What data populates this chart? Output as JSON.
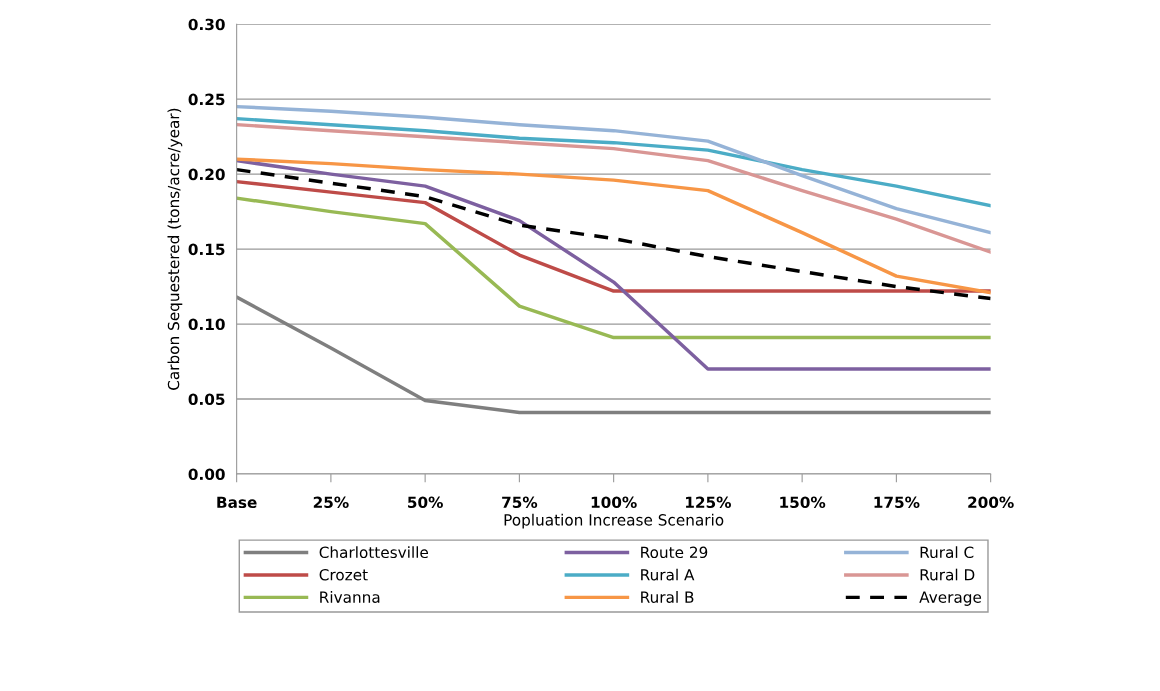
{
  "chart_data": {
    "type": "line",
    "xlabel": "Popluation Increase Scenario",
    "ylabel": "Carbon Sequestered (tons/acre/year)",
    "categories": [
      "Base",
      "25%",
      "50%",
      "75%",
      "100%",
      "125%",
      "150%",
      "175%",
      "200%"
    ],
    "ylim": [
      0,
      0.3
    ],
    "yticks": [
      {
        "value": 0,
        "label": "0.00"
      },
      {
        "value": 0.05,
        "label": "0.05"
      },
      {
        "value": 0.1,
        "label": "0.10"
      },
      {
        "value": 0.15,
        "label": "0.15"
      },
      {
        "value": 0.2,
        "label": "0.20"
      },
      {
        "value": 0.25,
        "label": "0.25"
      },
      {
        "value": 0.3,
        "label": "0.30"
      }
    ],
    "grid": "y",
    "legend": "bottom",
    "marker": "none",
    "series": [
      {
        "name": "Charlottesville",
        "color": "#7f7f7f",
        "values": [
          0.118,
          0.084,
          0.049,
          0.041,
          0.041,
          0.041,
          0.041,
          0.041,
          0.041
        ]
      },
      {
        "name": "Crozet",
        "color": "#be4b48",
        "values": [
          0.195,
          0.188,
          0.181,
          0.146,
          0.122,
          0.122,
          0.122,
          0.122,
          0.122
        ]
      },
      {
        "name": "Rivanna",
        "color": "#98b954",
        "values": [
          0.184,
          0.175,
          0.167,
          0.112,
          0.091,
          0.091,
          0.091,
          0.091,
          0.091
        ]
      },
      {
        "name": "Route 29",
        "color": "#7d60a0",
        "values": [
          0.209,
          0.2,
          0.192,
          0.169,
          0.128,
          0.07,
          0.07,
          0.07,
          0.07
        ]
      },
      {
        "name": "Rural A",
        "color": "#4bacc6",
        "values": [
          0.237,
          0.233,
          0.229,
          0.224,
          0.221,
          0.216,
          0.203,
          0.192,
          0.179
        ]
      },
      {
        "name": "Rural B",
        "color": "#f79646",
        "values": [
          0.21,
          0.207,
          0.203,
          0.2,
          0.196,
          0.189,
          0.161,
          0.132,
          0.121
        ]
      },
      {
        "name": "Rural C",
        "color": "#95b3d7",
        "values": [
          0.245,
          0.242,
          0.238,
          0.233,
          0.229,
          0.222,
          0.199,
          0.177,
          0.161
        ]
      },
      {
        "name": "Rural D",
        "color": "#d99694",
        "values": [
          0.233,
          0.229,
          0.225,
          0.221,
          0.217,
          0.209,
          0.189,
          0.17,
          0.148
        ]
      },
      {
        "name": "Average",
        "color": "#000000",
        "line_style": "dashed",
        "values": [
          0.203,
          0.194,
          0.185,
          0.166,
          0.157,
          0.145,
          0.135,
          0.125,
          0.117
        ]
      }
    ]
  }
}
